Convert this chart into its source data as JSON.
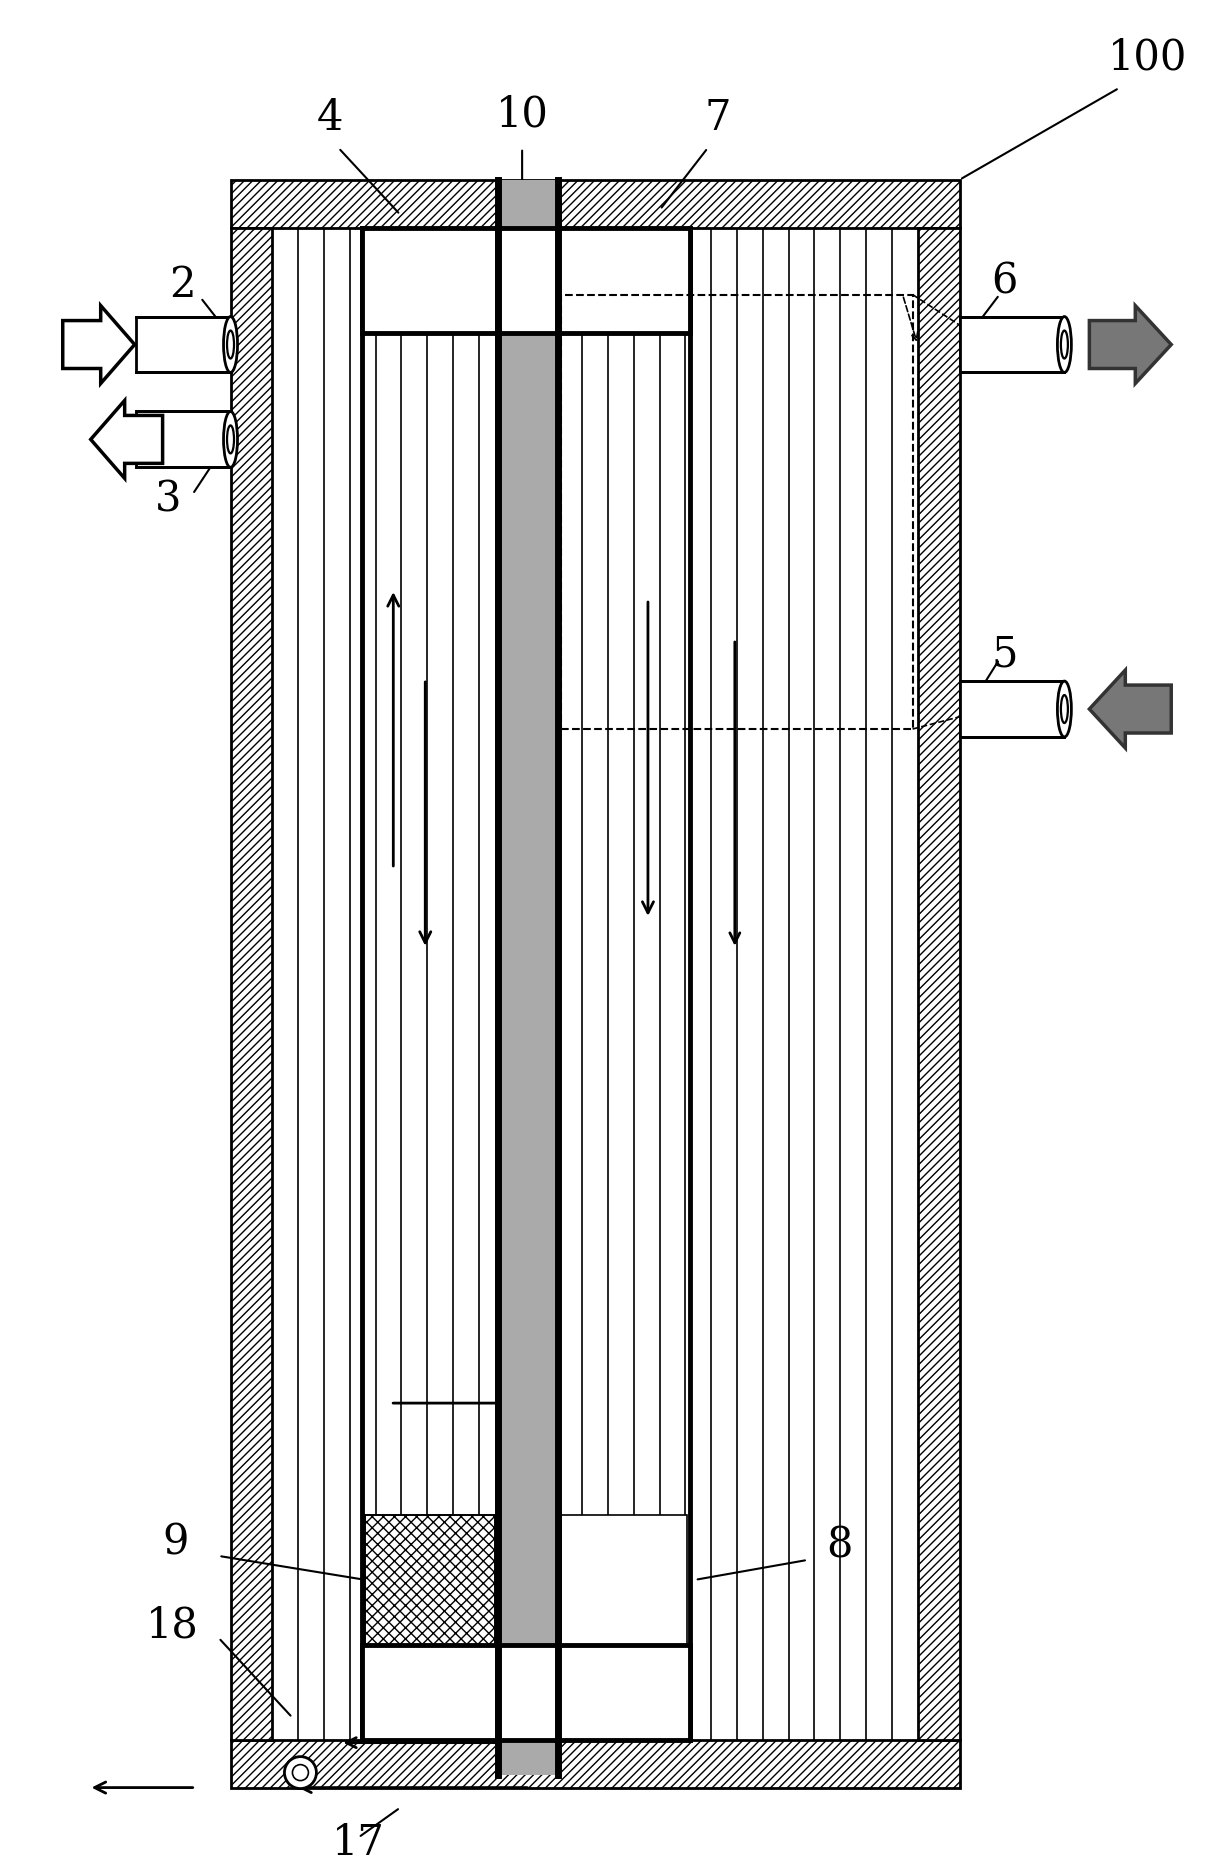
{
  "fig_width": 12.28,
  "fig_height": 18.69,
  "bg_color": "#ffffff",
  "line_color": "#000000"
}
